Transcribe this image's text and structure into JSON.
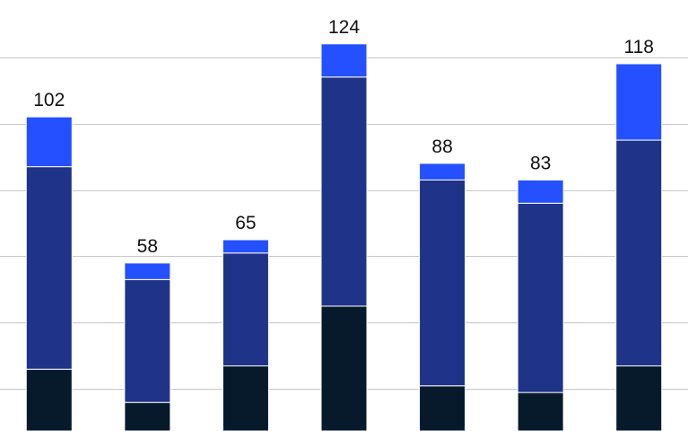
{
  "chart_data": {
    "type": "stacked-bar",
    "totals": [
      102,
      58,
      65,
      124,
      88,
      83,
      118
    ],
    "series": [
      {
        "color": "#071a2b",
        "values": [
          26,
          16,
          27,
          45,
          21,
          19,
          27
        ]
      },
      {
        "color": "#1f3388",
        "values": [
          61,
          37,
          34,
          69,
          62,
          57,
          68
        ]
      },
      {
        "color": "#2450ff",
        "values": [
          15,
          5,
          4,
          10,
          5,
          7,
          23
        ]
      }
    ],
    "ylim": [
      7.4,
      137.2
    ],
    "yticks": [
      20,
      40,
      60,
      80,
      100,
      120
    ],
    "grid": true,
    "grid_color": "#c8c8c8"
  }
}
